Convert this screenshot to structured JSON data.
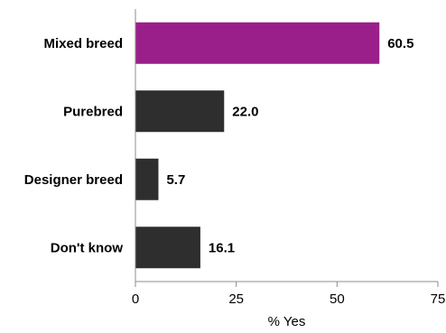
{
  "chart_data": {
    "type": "bar",
    "orientation": "horizontal",
    "categories": [
      "Mixed breed",
      "Purebred",
      "Designer breed",
      "Don't know"
    ],
    "values": [
      60.5,
      22.0,
      5.7,
      16.1
    ],
    "value_labels": [
      "60.5",
      "22.0",
      "5.7",
      "16.1"
    ],
    "highlight_index": 0,
    "colors": {
      "highlight": "#9b1f8a",
      "default": "#2e2e2e",
      "axis": "#8c8c8c"
    },
    "title": "",
    "xlabel": "% Yes",
    "ylabel": "",
    "xlim": [
      0,
      75
    ],
    "xticks": [
      0,
      25,
      50,
      75
    ],
    "xtick_labels": [
      "0",
      "25",
      "50",
      "75"
    ],
    "grid": false,
    "legend": "none"
  }
}
